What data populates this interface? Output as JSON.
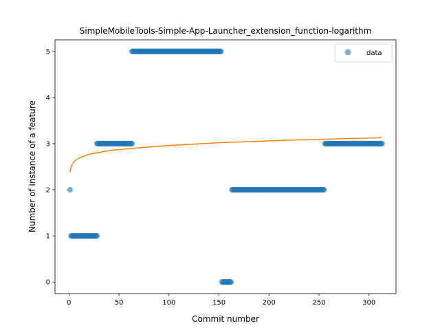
{
  "chart_data": {
    "type": "scatter",
    "title": "SimpleMobileTools-Simple-App-Launcher_extension_function-logarithm",
    "xlabel": "Commit number",
    "ylabel": "Number of instance of a feature",
    "xlim": [
      -14,
      327
    ],
    "ylim": [
      -0.25,
      5.25
    ],
    "xticks": [
      0,
      50,
      100,
      150,
      200,
      250,
      300
    ],
    "yticks": [
      0,
      1,
      2,
      3,
      4,
      5
    ],
    "grid": false,
    "legend_position": "top-right",
    "colors": {
      "data": "#1f77b4",
      "fit": "#ff7f0e"
    },
    "series": [
      {
        "name": "data",
        "type": "scatter",
        "segments": [
          {
            "x_start": 1,
            "x_end": 1,
            "y": 2
          },
          {
            "x_start": 2,
            "x_end": 28,
            "y": 1
          },
          {
            "x_start": 28,
            "x_end": 63,
            "y": 3
          },
          {
            "x_start": 63,
            "x_end": 152,
            "y": 5
          },
          {
            "x_start": 153,
            "x_end": 162,
            "y": 0
          },
          {
            "x_start": 163,
            "x_end": 255,
            "y": 2
          },
          {
            "x_start": 256,
            "x_end": 313,
            "y": 3
          }
        ]
      },
      {
        "type": "line",
        "fit": "logarithm",
        "points": [
          [
            1,
            2.38
          ],
          [
            2,
            2.49
          ],
          [
            4,
            2.58
          ],
          [
            6,
            2.63
          ],
          [
            10,
            2.69
          ],
          [
            15,
            2.73
          ],
          [
            20,
            2.77
          ],
          [
            30,
            2.81
          ],
          [
            40,
            2.85
          ],
          [
            50,
            2.87
          ],
          [
            60,
            2.89
          ],
          [
            75,
            2.92
          ],
          [
            100,
            2.96
          ],
          [
            125,
            2.99
          ],
          [
            150,
            3.02
          ],
          [
            175,
            3.04
          ],
          [
            200,
            3.06
          ],
          [
            225,
            3.08
          ],
          [
            250,
            3.09
          ],
          [
            275,
            3.11
          ],
          [
            300,
            3.12
          ],
          [
            313,
            3.13
          ]
        ]
      }
    ]
  }
}
